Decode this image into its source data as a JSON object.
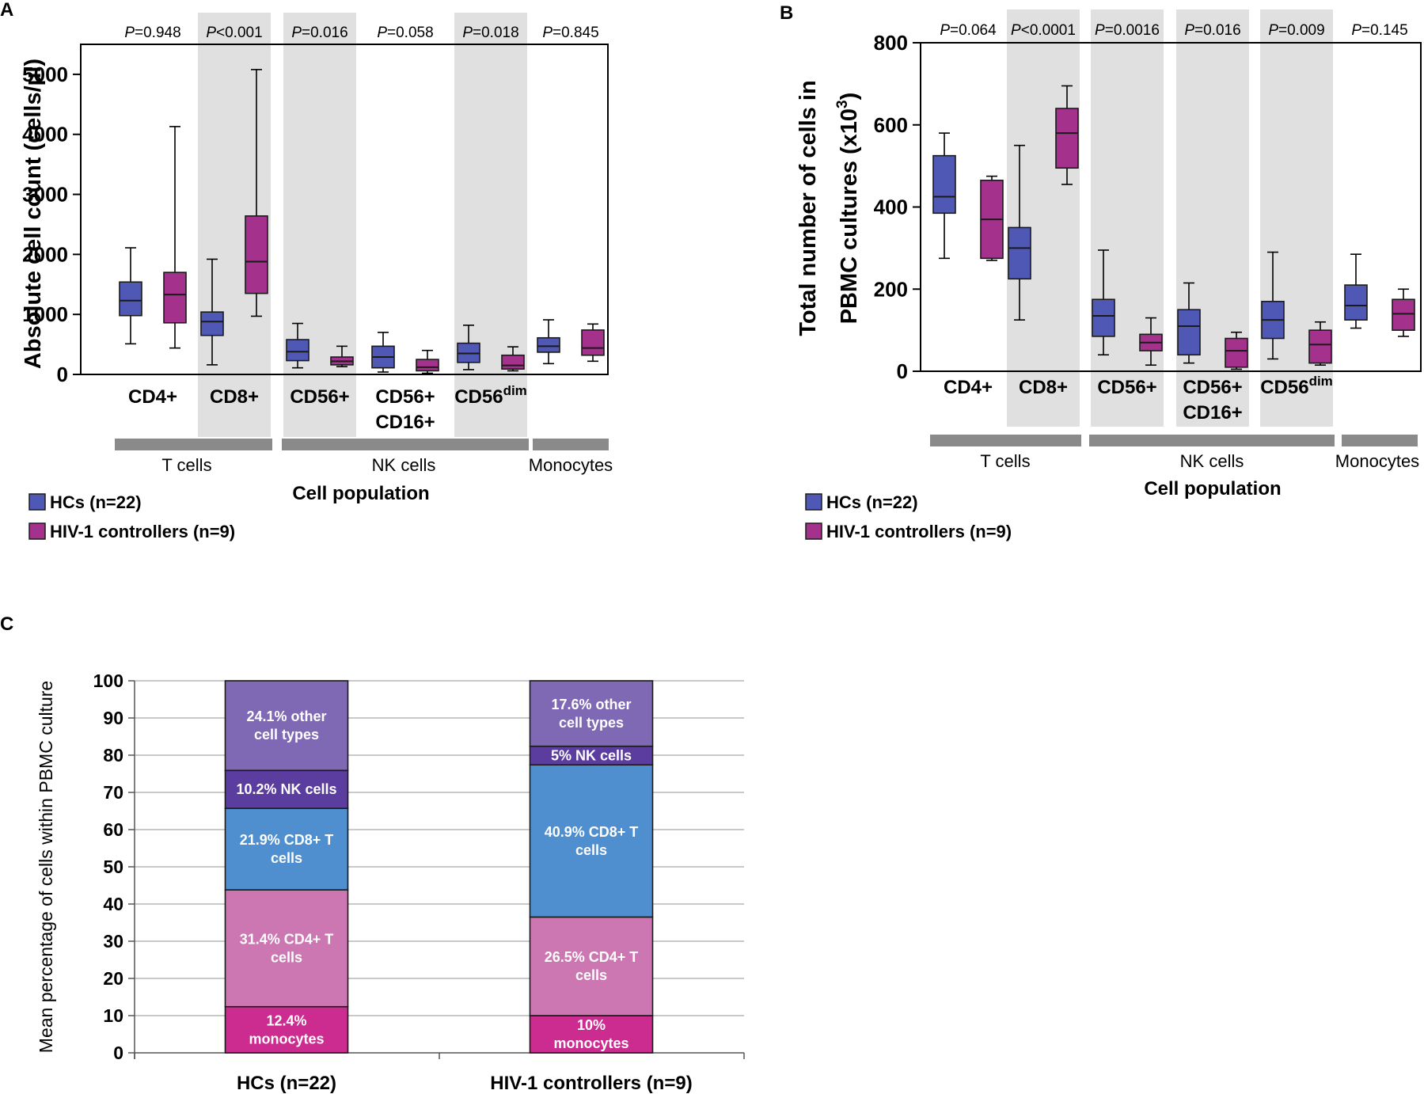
{
  "chart_data": [
    {
      "panel": "A",
      "type": "boxplot",
      "ylabel": "Absolute cell count (cells/µl)",
      "xlabel": "Cell population",
      "ylim": [
        0,
        5500
      ],
      "yticks": [
        0,
        1000,
        2000,
        3000,
        4000,
        5000
      ],
      "categories": [
        {
          "label": "CD4+",
          "label2": "",
          "sup": "",
          "p": "=0.948",
          "shaded": false,
          "boxes": [
            {
              "min": 510,
              "q1": 980,
              "median": 1230,
              "q3": 1540,
              "max": 2110
            },
            {
              "min": 440,
              "q1": 860,
              "median": 1330,
              "q3": 1700,
              "max": 4130
            }
          ]
        },
        {
          "label": "CD8+",
          "label2": "",
          "sup": "",
          "p": "<0.001",
          "shaded": true,
          "boxes": [
            {
              "min": 160,
              "q1": 650,
              "median": 880,
              "q3": 1040,
              "max": 1920
            },
            {
              "min": 970,
              "q1": 1350,
              "median": 1880,
              "q3": 2640,
              "max": 5080
            }
          ]
        },
        {
          "label": "CD56+",
          "label2": "",
          "sup": "",
          "p": "=0.016",
          "shaded": true,
          "boxes": [
            {
              "min": 110,
              "q1": 230,
              "median": 380,
              "q3": 580,
              "max": 850
            },
            {
              "min": 130,
              "q1": 160,
              "median": 220,
              "q3": 290,
              "max": 470
            }
          ]
        },
        {
          "label": "CD56+",
          "label2": "CD16+",
          "sup": "",
          "p": "=0.058",
          "shaded": false,
          "boxes": [
            {
              "min": 40,
              "q1": 110,
              "median": 290,
              "q3": 470,
              "max": 700
            },
            {
              "min": 20,
              "q1": 60,
              "median": 120,
              "q3": 250,
              "max": 400
            }
          ]
        },
        {
          "label": "CD56",
          "label2": "",
          "sup": "dim",
          "p": "=0.018",
          "shaded": true,
          "boxes": [
            {
              "min": 80,
              "q1": 200,
              "median": 350,
              "q3": 520,
              "max": 820
            },
            {
              "min": 60,
              "q1": 90,
              "median": 150,
              "q3": 320,
              "max": 460
            }
          ]
        },
        {
          "label": "",
          "label2": "",
          "sup": "",
          "p": "=0.845",
          "shaded": false,
          "boxes": [
            {
              "min": 180,
              "q1": 370,
              "median": 470,
              "q3": 610,
              "max": 910
            },
            {
              "min": 220,
              "q1": 320,
              "median": 440,
              "q3": 740,
              "max": 840
            }
          ]
        }
      ],
      "groups": [
        {
          "label": "T cells",
          "from": 0,
          "to": 1
        },
        {
          "label": "NK cells",
          "from": 2,
          "to": 4
        },
        {
          "label": "Monocytes",
          "from": 5,
          "to": 5
        }
      ],
      "legend": [
        "HCs (n=22)",
        "HIV-1 controllers (n=9)"
      ]
    },
    {
      "panel": "B",
      "type": "boxplot",
      "ylabel_line1": "Total number of cells in",
      "ylabel_line2": "PBMC cultures (x10",
      "ylabel_sup": "3",
      "ylabel_tail": ")",
      "xlabel": "Cell population",
      "ylim": [
        0,
        800
      ],
      "yticks": [
        0,
        200,
        400,
        600,
        800
      ],
      "categories": [
        {
          "label": "CD4+",
          "label2": "",
          "sup": "",
          "p": "=0.064",
          "shaded": false,
          "boxes": [
            {
              "min": 275,
              "q1": 385,
              "median": 425,
              "q3": 525,
              "max": 580
            },
            {
              "min": 270,
              "q1": 275,
              "median": 370,
              "q3": 465,
              "max": 475
            }
          ]
        },
        {
          "label": "CD8+",
          "label2": "",
          "sup": "",
          "p": "<0.0001",
          "shaded": true,
          "boxes": [
            {
              "min": 125,
              "q1": 225,
              "median": 300,
              "q3": 350,
              "max": 550
            },
            {
              "min": 455,
              "q1": 495,
              "median": 580,
              "q3": 640,
              "max": 695
            }
          ]
        },
        {
          "label": "CD56+",
          "label2": "",
          "sup": "",
          "p": "=0.0016",
          "shaded": true,
          "boxes": [
            {
              "min": 40,
              "q1": 85,
              "median": 135,
              "q3": 175,
              "max": 295
            },
            {
              "min": 15,
              "q1": 50,
              "median": 70,
              "q3": 90,
              "max": 130
            }
          ]
        },
        {
          "label": "CD56+",
          "label2": "CD16+",
          "sup": "",
          "p": "=0.016",
          "shaded": true,
          "boxes": [
            {
              "min": 20,
              "q1": 40,
              "median": 110,
              "q3": 150,
              "max": 215
            },
            {
              "min": 5,
              "q1": 10,
              "median": 50,
              "q3": 80,
              "max": 95
            }
          ]
        },
        {
          "label": "CD56",
          "label2": "",
          "sup": "dim",
          "p": "=0.009",
          "shaded": true,
          "boxes": [
            {
              "min": 30,
              "q1": 80,
              "median": 125,
              "q3": 170,
              "max": 290
            },
            {
              "min": 15,
              "q1": 20,
              "median": 65,
              "q3": 100,
              "max": 120
            }
          ]
        },
        {
          "label": "",
          "label2": "",
          "sup": "",
          "p": "=0.145",
          "shaded": false,
          "boxes": [
            {
              "min": 105,
              "q1": 125,
              "median": 160,
              "q3": 210,
              "max": 285
            },
            {
              "min": 85,
              "q1": 100,
              "median": 140,
              "q3": 175,
              "max": 200
            }
          ]
        }
      ],
      "groups": [
        {
          "label": "T cells",
          "from": 0,
          "to": 1
        },
        {
          "label": "NK cells",
          "from": 2,
          "to": 4
        },
        {
          "label": "Monocytes",
          "from": 5,
          "to": 5
        }
      ],
      "legend": [
        "HCs (n=22)",
        "HIV-1 controllers (n=9)"
      ]
    },
    {
      "panel": "C",
      "type": "stacked_bar",
      "ylabel": "Mean percentage of cells within PBMC culture",
      "ylim": [
        0,
        100
      ],
      "yticks": [
        0,
        10,
        20,
        30,
        40,
        50,
        60,
        70,
        80,
        90,
        100
      ],
      "categories": [
        "HCs (n=22)",
        "HIV-1 controllers (n=9)"
      ],
      "series": [
        {
          "name": "monocytes",
          "color": "#cc2b8f",
          "values": [
            12.4,
            10
          ],
          "labels": [
            [
              "12.4%",
              "monocytes"
            ],
            [
              "10%",
              "monocytes"
            ]
          ]
        },
        {
          "name": "CD4+ T cells",
          "color": "#cc77b2",
          "values": [
            31.4,
            26.5
          ],
          "labels": [
            [
              "31.4% CD4+ T",
              "cells"
            ],
            [
              "26.5% CD4+ T",
              "cells"
            ]
          ]
        },
        {
          "name": "CD8+ T cells",
          "color": "#4f8fd0",
          "values": [
            21.9,
            40.9
          ],
          "labels": [
            [
              "21.9% CD8+ T",
              "cells"
            ],
            [
              "40.9% CD8+ T",
              "cells"
            ]
          ]
        },
        {
          "name": "NK cells",
          "color": "#5b3d9f",
          "values": [
            10.2,
            5
          ],
          "labels": [
            [
              "10.2% NK cells"
            ],
            [
              "5% NK cells"
            ]
          ]
        },
        {
          "name": "other cell types",
          "color": "#7f69b4",
          "values": [
            24.1,
            17.6
          ],
          "labels": [
            [
              "24.1% other",
              "cell types"
            ],
            [
              "17.6% other",
              "cell types"
            ]
          ]
        }
      ]
    }
  ],
  "colors": {
    "hc": "#5058b6",
    "hiv": "#a4318c",
    "shade": "#e0e0e0",
    "group_bar": "#8a8a8a",
    "grid": "#b7b7b7"
  },
  "panel_letters": [
    "A",
    "B",
    "C"
  ],
  "p_prefix": "P"
}
